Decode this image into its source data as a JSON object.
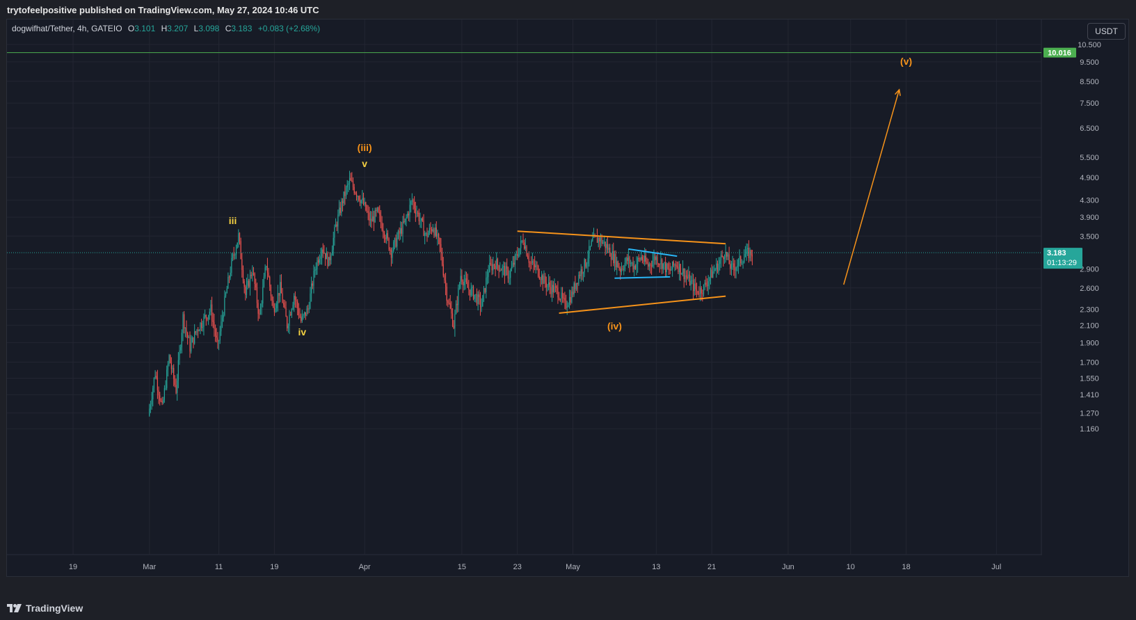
{
  "header": {
    "published_text": "trytofeelpositive published on TradingView.com, May 27, 2024 10:46 UTC"
  },
  "legend": {
    "symbol": "dogwifhat/Tether, 4h, GATEIO",
    "o_label": "O",
    "o_value": "3.101",
    "h_label": "H",
    "h_value": "3.207",
    "l_label": "L",
    "l_value": "3.098",
    "c_label": "C",
    "c_value": "3.183",
    "change": "+0.083 (+2.68%)"
  },
  "currency_button": "USDT",
  "footer": {
    "brand": "TradingView"
  },
  "colors": {
    "up": "#26a69a",
    "down": "#ef5350",
    "orange": "#f7931a",
    "yellow": "#f5d142",
    "cyan": "#29b6f6",
    "green_line": "#4caf50"
  },
  "chart_data": {
    "type": "candlestick",
    "scale": "log",
    "ylim": [
      1.1,
      11.3
    ],
    "y_ticks": [
      "10.500",
      "9.500",
      "8.500",
      "7.500",
      "6.500",
      "5.500",
      "4.900",
      "4.300",
      "3.900",
      "3.500",
      "2.900",
      "2.600",
      "2.300",
      "2.100",
      "1.900",
      "1.700",
      "1.550",
      "1.410",
      "1.270",
      "1.160"
    ],
    "x_ticks": [
      "19",
      "Mar",
      "11",
      "19",
      "Apr",
      "15",
      "23",
      "May",
      "13",
      "21",
      "Jun",
      "10",
      "18",
      "Jul"
    ],
    "x_tick_dates": [
      "2024-02-19",
      "2024-03-01",
      "2024-03-11",
      "2024-03-19",
      "2024-04-01",
      "2024-04-15",
      "2024-04-23",
      "2024-05-01",
      "2024-05-13",
      "2024-05-21",
      "2024-06-01",
      "2024-06-10",
      "2024-06-18",
      "2024-07-01"
    ],
    "last_price": {
      "value": 3.183,
      "label": "3.183",
      "countdown": "01:13:29"
    },
    "horizontal_line": {
      "value": 10.016,
      "label": "10.016"
    },
    "price_path": [
      [
        "2024-03-01",
        1.25
      ],
      [
        "2024-03-02",
        1.6
      ],
      [
        "2024-03-03",
        1.3
      ],
      [
        "2024-03-04",
        1.75
      ],
      [
        "2024-03-05",
        1.45
      ],
      [
        "2024-03-06",
        2.2
      ],
      [
        "2024-03-07",
        1.85
      ],
      [
        "2024-03-08",
        2.05
      ],
      [
        "2024-03-10",
        2.3
      ],
      [
        "2024-03-11",
        1.85
      ],
      [
        "2024-03-12",
        2.4
      ],
      [
        "2024-03-13",
        3.0
      ],
      [
        "2024-03-14",
        3.5
      ],
      [
        "2024-03-15",
        2.5
      ],
      [
        "2024-03-16",
        2.9
      ],
      [
        "2024-03-17",
        2.2
      ],
      [
        "2024-03-18",
        3.0
      ],
      [
        "2024-03-19",
        2.3
      ],
      [
        "2024-03-20",
        2.6
      ],
      [
        "2024-03-21",
        2.1
      ],
      [
        "2024-03-22",
        2.5
      ],
      [
        "2024-03-23",
        2.15
      ],
      [
        "2024-03-24",
        2.3
      ],
      [
        "2024-03-25",
        2.9
      ],
      [
        "2024-03-26",
        3.3
      ],
      [
        "2024-03-27",
        3.0
      ],
      [
        "2024-03-28",
        3.7
      ],
      [
        "2024-03-29",
        4.3
      ],
      [
        "2024-03-30",
        4.8
      ],
      [
        "2024-03-31",
        4.5
      ],
      [
        "2024-04-01",
        4.2
      ],
      [
        "2024-04-02",
        3.8
      ],
      [
        "2024-04-03",
        4.0
      ],
      [
        "2024-04-04",
        3.6
      ],
      [
        "2024-04-05",
        3.2
      ],
      [
        "2024-04-06",
        3.5
      ],
      [
        "2024-04-07",
        3.8
      ],
      [
        "2024-04-08",
        4.3
      ],
      [
        "2024-04-09",
        3.9
      ],
      [
        "2024-04-10",
        3.5
      ],
      [
        "2024-04-11",
        3.7
      ],
      [
        "2024-04-12",
        3.3
      ],
      [
        "2024-04-13",
        2.5
      ],
      [
        "2024-04-14",
        2.1
      ],
      [
        "2024-04-15",
        2.8
      ],
      [
        "2024-04-16",
        2.6
      ],
      [
        "2024-04-17",
        2.5
      ],
      [
        "2024-04-18",
        2.35
      ],
      [
        "2024-04-19",
        2.9
      ],
      [
        "2024-04-20",
        3.0
      ],
      [
        "2024-04-21",
        2.9
      ],
      [
        "2024-04-22",
        2.8
      ],
      [
        "2024-04-23",
        3.1
      ],
      [
        "2024-04-24",
        3.45
      ],
      [
        "2024-04-25",
        3.0
      ],
      [
        "2024-04-26",
        2.9
      ],
      [
        "2024-04-27",
        2.7
      ],
      [
        "2024-04-28",
        2.6
      ],
      [
        "2024-04-29",
        2.55
      ],
      [
        "2024-04-30",
        2.35
      ],
      [
        "2024-05-01",
        2.5
      ],
      [
        "2024-05-02",
        2.8
      ],
      [
        "2024-05-03",
        3.0
      ],
      [
        "2024-05-04",
        3.4
      ],
      [
        "2024-05-05",
        3.45
      ],
      [
        "2024-05-06",
        3.3
      ],
      [
        "2024-05-07",
        3.1
      ],
      [
        "2024-05-08",
        2.9
      ],
      [
        "2024-05-09",
        3.05
      ],
      [
        "2024-05-10",
        2.95
      ],
      [
        "2024-05-11",
        3.1
      ],
      [
        "2024-05-12",
        2.95
      ],
      [
        "2024-05-13",
        3.1
      ],
      [
        "2024-05-14",
        3.0
      ],
      [
        "2024-05-15",
        2.85
      ],
      [
        "2024-05-16",
        3.0
      ],
      [
        "2024-05-17",
        2.85
      ],
      [
        "2024-05-18",
        2.7
      ],
      [
        "2024-05-19",
        2.55
      ],
      [
        "2024-05-20",
        2.6
      ],
      [
        "2024-05-21",
        2.8
      ],
      [
        "2024-05-22",
        2.95
      ],
      [
        "2024-05-23",
        3.2
      ],
      [
        "2024-05-24",
        2.9
      ],
      [
        "2024-05-25",
        3.0
      ],
      [
        "2024-05-26",
        3.15
      ],
      [
        "2024-05-27",
        3.183
      ]
    ],
    "trendlines": [
      {
        "name": "triangle-upper",
        "color": "orange",
        "from": [
          "2024-04-23",
          3.6
        ],
        "to": [
          "2024-05-23",
          3.35
        ]
      },
      {
        "name": "triangle-lower",
        "color": "orange",
        "from": [
          "2024-04-29",
          2.25
        ],
        "to": [
          "2024-05-23",
          2.48
        ]
      },
      {
        "name": "small-triangle-upper",
        "color": "cyan",
        "from": [
          "2024-05-09",
          3.25
        ],
        "to": [
          "2024-05-16",
          3.12
        ]
      },
      {
        "name": "small-triangle-lower",
        "color": "cyan",
        "from": [
          "2024-05-07",
          2.75
        ],
        "to": [
          "2024-05-15",
          2.77
        ]
      }
    ],
    "projection_arrow": {
      "from": [
        "2024-06-09",
        2.65
      ],
      "to": [
        "2024-06-17",
        8.1
      ]
    },
    "wave_labels": [
      {
        "text": "(iii)",
        "date": "2024-04-01",
        "price": 5.7,
        "color": "orange"
      },
      {
        "text": "v",
        "date": "2024-04-01",
        "price": 5.2,
        "color": "yellow"
      },
      {
        "text": "iii",
        "date": "2024-03-13",
        "price": 3.75,
        "color": "yellow"
      },
      {
        "text": "iv",
        "date": "2024-03-23",
        "price": 1.98,
        "color": "yellow"
      },
      {
        "text": "(iv)",
        "date": "2024-05-07",
        "price": 2.05,
        "color": "orange"
      },
      {
        "text": "(v)",
        "date": "2024-06-18",
        "price": 9.35,
        "color": "orange"
      }
    ]
  }
}
